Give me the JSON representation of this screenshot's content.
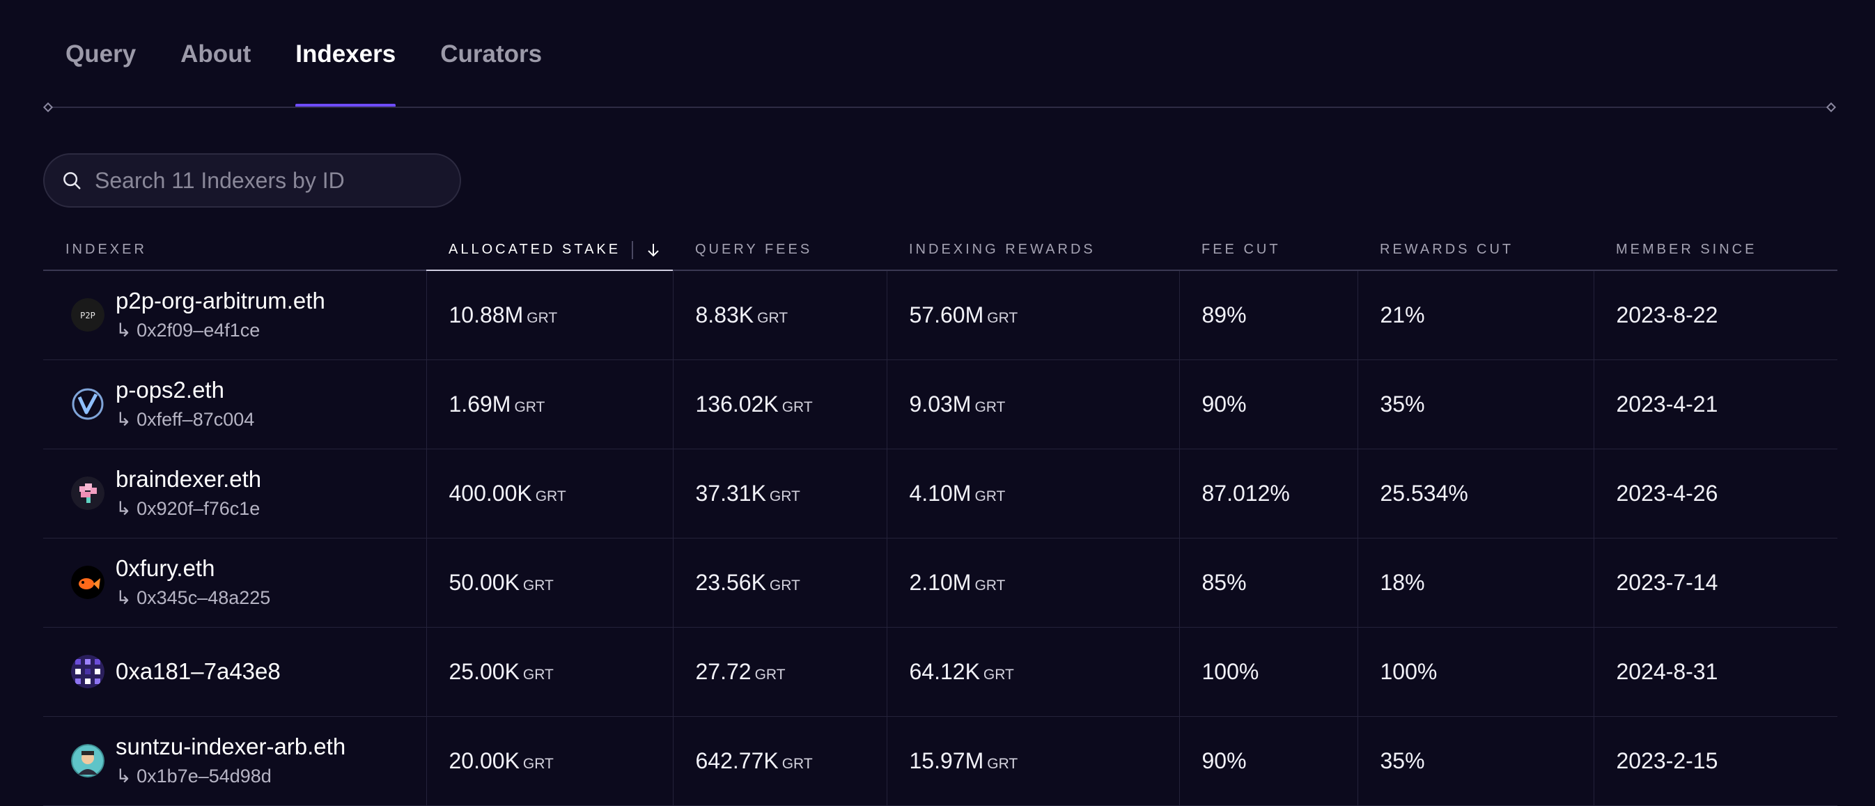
{
  "tabs": [
    {
      "label": "Query"
    },
    {
      "label": "About"
    },
    {
      "label": "Indexers"
    },
    {
      "label": "Curators"
    }
  ],
  "search": {
    "placeholder": "Search 11 Indexers by ID"
  },
  "table": {
    "headers": {
      "indexer": "INDEXER",
      "allocated_stake": "ALLOCATED STAKE",
      "query_fees": "QUERY FEES",
      "indexing_rewards": "INDEXING REWARDS",
      "fee_cut": "FEE CUT",
      "rewards_cut": "REWARDS CUT",
      "member_since": "MEMBER SINCE"
    },
    "unit": "GRT",
    "rows": [
      {
        "name": "p2p-org-arbitrum.eth",
        "address": "↳ 0x2f09–e4f1ce",
        "avatar": "p2p-logo-icon",
        "stake": "10.88M",
        "fees": "8.83K",
        "rewards": "57.60M",
        "fee_cut": "89%",
        "rewards_cut": "21%",
        "since": "2023-8-22"
      },
      {
        "name": "p-ops2.eth",
        "address": "↳ 0xfeff–87c004",
        "avatar": "v-logo-icon",
        "stake": "1.69M",
        "fees": "136.02K",
        "rewards": "9.03M",
        "fee_cut": "90%",
        "rewards_cut": "35%",
        "since": "2023-4-21"
      },
      {
        "name": "braindexer.eth",
        "address": "↳ 0x920f–f76c1e",
        "avatar": "brain-logo-icon",
        "stake": "400.00K",
        "fees": "37.31K",
        "rewards": "4.10M",
        "fee_cut": "87.012%",
        "rewards_cut": "25.534%",
        "since": "2023-4-26"
      },
      {
        "name": "0xfury.eth",
        "address": "↳ 0x345c–48a225",
        "avatar": "fish-logo-icon",
        "stake": "50.00K",
        "fees": "23.56K",
        "rewards": "2.10M",
        "fee_cut": "85%",
        "rewards_cut": "18%",
        "since": "2023-7-14"
      },
      {
        "name": "0xa181–7a43e8",
        "address": "",
        "avatar": "pixel-avatar-icon",
        "stake": "25.00K",
        "fees": "27.72",
        "rewards": "64.12K",
        "fee_cut": "100%",
        "rewards_cut": "100%",
        "since": "2024-8-31"
      },
      {
        "name": "suntzu-indexer-arb.eth",
        "address": "↳ 0x1b7e–54d98d",
        "avatar": "portrait-avatar-icon",
        "stake": "20.00K",
        "fees": "642.77K",
        "rewards": "15.97M",
        "fee_cut": "90%",
        "rewards_cut": "35%",
        "since": "2023-2-15"
      }
    ]
  },
  "colors": {
    "background": "#0c0a1d",
    "accent": "#6f4cff",
    "muted": "#9c9aa9"
  }
}
